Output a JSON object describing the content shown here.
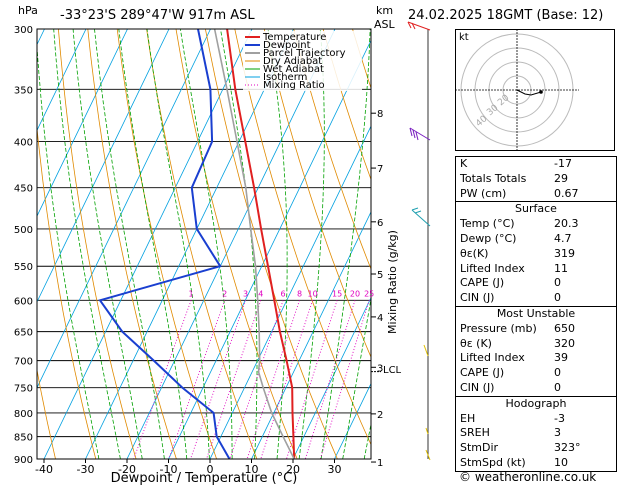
{
  "header": {
    "hpa_label": "hPa",
    "location": "-33°23'S 289°47'W 917m ASL",
    "km_label": "km",
    "asl_label": "ASL",
    "datetime": "24.02.2025 18GMT (Base: 12)"
  },
  "chart_data": {
    "type": "line",
    "title": "Skew-T log-P diagram",
    "xlabel": "Dewpoint / Temperature (°C)",
    "ylabel": "Mixing Ratio (g/kg)",
    "x_ticks": [
      -40,
      -30,
      -20,
      -10,
      0,
      10,
      20,
      30
    ],
    "x_tick_labels": [
      "-40",
      "-30",
      "-20",
      "-10",
      "0",
      "10",
      "20",
      "30"
    ],
    "pressure_levels": [
      300,
      350,
      400,
      450,
      500,
      550,
      600,
      650,
      700,
      750,
      800,
      850,
      900
    ],
    "pressure_labels": [
      "300",
      "350",
      "400",
      "450",
      "500",
      "550",
      "600",
      "650",
      "700",
      "750",
      "800",
      "850",
      "900"
    ],
    "km_ticks": [
      {
        "km": 1,
        "p": 907
      },
      {
        "km": 2,
        "p": 802
      },
      {
        "km": 3,
        "p": 712
      },
      {
        "km": 4,
        "p": 626
      },
      {
        "km": 5,
        "p": 561
      },
      {
        "km": 6,
        "p": 491
      },
      {
        "km": 7,
        "p": 428
      },
      {
        "km": 8,
        "p": 372
      }
    ],
    "km_labels": [
      "1",
      "2",
      "3",
      "4",
      "5",
      "6",
      "7",
      "8"
    ],
    "lcl_label": "LCL",
    "lcl_pressure": 720,
    "mixing_ratio_values": [
      1,
      2,
      3,
      4,
      6,
      8,
      10,
      15,
      20,
      25
    ],
    "mixing_ratio_labels": [
      "1",
      "2",
      "3",
      "4",
      "6",
      "8",
      "10",
      "15",
      "20",
      "25"
    ],
    "legend": [
      "Temperature",
      "Dewpoint",
      "Parcel Trajectory",
      "Dry Adiabat",
      "Wet Adiabat",
      "Isotherm",
      "Mixing Ratio"
    ],
    "series": [
      {
        "name": "Temperature",
        "color": "#e02020",
        "points": [
          [
            900,
            20.3
          ],
          [
            850,
            17.5
          ],
          [
            800,
            14.5
          ],
          [
            750,
            11.5
          ],
          [
            700,
            7.0
          ],
          [
            650,
            2.0
          ],
          [
            600,
            -3.0
          ],
          [
            550,
            -8.5
          ],
          [
            500,
            -14.5
          ],
          [
            450,
            -21.0
          ],
          [
            400,
            -28.5
          ],
          [
            350,
            -37.0
          ],
          [
            300,
            -46.0
          ]
        ]
      },
      {
        "name": "Dewpoint",
        "color": "#1a3fd0",
        "points": [
          [
            900,
            4.7
          ],
          [
            850,
            -1.0
          ],
          [
            800,
            -4.5
          ],
          [
            750,
            -15.0
          ],
          [
            700,
            -25.0
          ],
          [
            650,
            -36.0
          ],
          [
            600,
            -45.0
          ],
          [
            550,
            -20.0
          ],
          [
            500,
            -30.0
          ],
          [
            450,
            -36.0
          ],
          [
            400,
            -36.5
          ],
          [
            350,
            -43.0
          ],
          [
            300,
            -53.0
          ]
        ]
      },
      {
        "name": "Parcel Trajectory",
        "color": "#a0a0a0",
        "points": [
          [
            900,
            20.3
          ],
          [
            850,
            15.0
          ],
          [
            800,
            9.5
          ],
          [
            750,
            4.5
          ],
          [
            720,
            1.5
          ],
          [
            700,
            0.5
          ],
          [
            650,
            -3.0
          ],
          [
            600,
            -7.0
          ],
          [
            550,
            -11.5
          ],
          [
            500,
            -17.0
          ],
          [
            450,
            -23.0
          ],
          [
            400,
            -30.5
          ],
          [
            350,
            -39.0
          ],
          [
            300,
            -49.0
          ]
        ]
      }
    ],
    "wind_barbs_count": 5
  },
  "indices": {
    "rows": [
      {
        "label": "K",
        "value": "-17"
      },
      {
        "label": "Totals Totals",
        "value": "29"
      },
      {
        "label": "PW (cm)",
        "value": "0.67"
      }
    ]
  },
  "surface": {
    "title": "Surface",
    "rows": [
      {
        "label": "Temp (°C)",
        "value": "20.3"
      },
      {
        "label": "Dewp (°C)",
        "value": "4.7"
      },
      {
        "label": "θε(K)",
        "value": "319"
      },
      {
        "label": "Lifted Index",
        "value": "11"
      },
      {
        "label": "CAPE (J)",
        "value": "0"
      },
      {
        "label": "CIN (J)",
        "value": "0"
      }
    ]
  },
  "most_unstable": {
    "title": "Most Unstable",
    "rows": [
      {
        "label": "Pressure (mb)",
        "value": "650"
      },
      {
        "label": "θε (K)",
        "value": "320"
      },
      {
        "label": "Lifted Index",
        "value": "39"
      },
      {
        "label": "CAPE (J)",
        "value": "0"
      },
      {
        "label": "CIN (J)",
        "value": "0"
      }
    ]
  },
  "hodograph": {
    "title": "Hodograph",
    "unit_label": "kt",
    "ring_labels": [
      "20",
      "30",
      "40"
    ],
    "rows": [
      {
        "label": "EH",
        "value": "-3"
      },
      {
        "label": "SREH",
        "value": "3"
      },
      {
        "label": "StmDir",
        "value": "323°"
      },
      {
        "label": "StmSpd (kt)",
        "value": "10"
      }
    ]
  },
  "footer": {
    "copyright": "© weatheronline.co.uk"
  },
  "colors": {
    "temperature": "#e02020",
    "dewpoint": "#1a3fd0",
    "parcel": "#a0a0a0",
    "dry_adiabat": "#e08a00",
    "wet_adiabat": "#00a000",
    "isotherm": "#00a0e0",
    "mixing_ratio": "#e000c0"
  }
}
